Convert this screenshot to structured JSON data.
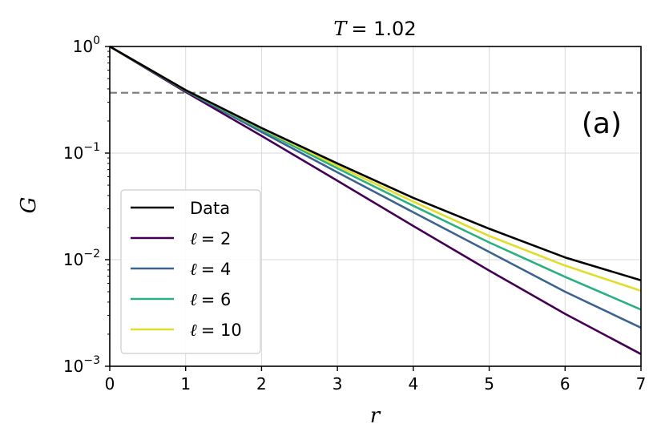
{
  "chart_data": {
    "type": "line",
    "title_prefix": "T",
    "title_value": "= 1.02",
    "xlabel": "r",
    "ylabel": "G",
    "xlim": [
      0,
      7
    ],
    "ylim_log10": [
      -3,
      0
    ],
    "yscale": "log",
    "grid": true,
    "panel_label": "(a)",
    "xticks": [
      "0",
      "1",
      "2",
      "3",
      "4",
      "5",
      "6",
      "7"
    ],
    "yticks": [
      {
        "value": 1,
        "base": "10",
        "exp": "0"
      },
      {
        "value": 0.1,
        "base": "10",
        "exp": "−1"
      },
      {
        "value": 0.01,
        "base": "10",
        "exp": "−2"
      },
      {
        "value": 0.001,
        "base": "10",
        "exp": "−3"
      }
    ],
    "reference_line": {
      "y": 0.3679,
      "style": "dashed",
      "color": "#808080"
    },
    "legend_position": "lower-left",
    "x": [
      0,
      1,
      2,
      3,
      4,
      5,
      6,
      7
    ],
    "series": [
      {
        "name": "Data",
        "symbol": "",
        "value_label": "",
        "color": "#000000",
        "values": [
          1.0,
          0.39,
          0.172,
          0.08,
          0.038,
          0.0195,
          0.0105,
          0.0064
        ]
      },
      {
        "name": "",
        "symbol": "ℓ",
        "value_label": "= 2",
        "color": "#440154",
        "values": [
          1.0,
          0.375,
          0.145,
          0.055,
          0.0207,
          0.0079,
          0.0031,
          0.0013
        ]
      },
      {
        "name": "",
        "symbol": "ℓ",
        "value_label": "= 4",
        "color": "#3b638e",
        "values": [
          1.0,
          0.383,
          0.158,
          0.066,
          0.0278,
          0.0118,
          0.005,
          0.0023
        ]
      },
      {
        "name": "",
        "symbol": "ℓ",
        "value_label": "= 6",
        "color": "#2ab07f",
        "values": [
          1.0,
          0.387,
          0.165,
          0.072,
          0.032,
          0.0145,
          0.0069,
          0.0034
        ]
      },
      {
        "name": "",
        "symbol": "ℓ",
        "value_label": "= 10",
        "color": "#e0dd2d",
        "values": [
          1.0,
          0.39,
          0.17,
          0.076,
          0.035,
          0.0167,
          0.0088,
          0.0051
        ]
      }
    ]
  }
}
